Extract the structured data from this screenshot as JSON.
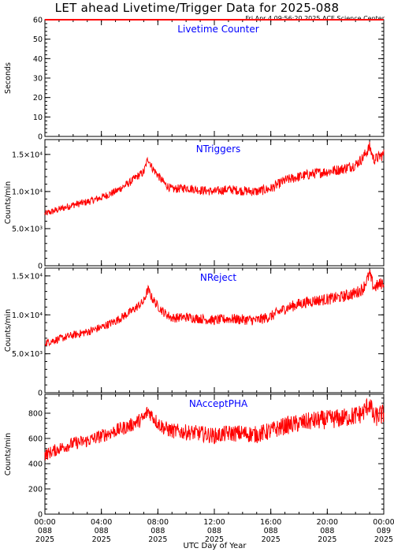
{
  "header": {
    "title": "LET ahead Livetime/Trigger Data for 2025-088",
    "timestamp": "Fri Apr  4 09:56:20 2025 ACE Science Center"
  },
  "colors": {
    "data": "#ff0000",
    "axis": "#000000",
    "panel_title": "#0000ff"
  },
  "chart_data": [
    {
      "type": "line",
      "title": "Livetime Counter",
      "xlabel": "",
      "ylabel": "Seconds",
      "xlim": [
        0,
        24
      ],
      "ylim": [
        0,
        60
      ],
      "yticks": [
        0,
        10,
        20,
        30,
        40,
        50,
        60
      ],
      "yticklabels": [
        "0",
        "10",
        "20",
        "30",
        "40",
        "50",
        "60"
      ],
      "series": [
        {
          "x": [
            0,
            24
          ],
          "y": [
            60,
            60
          ]
        }
      ]
    },
    {
      "type": "line",
      "title": "NTriggers",
      "xlabel": "",
      "ylabel": "Counts/min",
      "xlim": [
        0,
        24
      ],
      "ylim": [
        0,
        17000
      ],
      "yticks": [
        0,
        5000,
        10000,
        15000
      ],
      "yticklabels": [
        "0",
        "5.0×10³",
        "1.0×10⁴",
        "1.5×10⁴"
      ],
      "series": [
        {
          "x": [
            0,
            1,
            2,
            3,
            4,
            5,
            6,
            6.5,
            7,
            7.3,
            7.6,
            8,
            8.5,
            9,
            10,
            11,
            12,
            13,
            14,
            15,
            16,
            17,
            18,
            19,
            20,
            21,
            22,
            22.5,
            23,
            23.3,
            23.6,
            24
          ],
          "y": [
            7000,
            7600,
            8200,
            8600,
            9200,
            10000,
            11200,
            12000,
            12600,
            14500,
            13200,
            12200,
            11000,
            10300,
            10500,
            10200,
            10000,
            10300,
            10100,
            10000,
            10400,
            11500,
            12000,
            12400,
            12700,
            13000,
            13600,
            14500,
            16000,
            14300,
            14600,
            15000
          ]
        }
      ]
    },
    {
      "type": "line",
      "title": "NReject",
      "xlabel": "",
      "ylabel": "Counts/min",
      "xlim": [
        0,
        24
      ],
      "ylim": [
        0,
        16000
      ],
      "yticks": [
        0,
        5000,
        10000,
        15000
      ],
      "yticklabels": [
        "0",
        "5.0×10³",
        "1.0×10⁴",
        "1.5×10⁴"
      ],
      "series": [
        {
          "x": [
            0,
            1,
            2,
            3,
            4,
            5,
            6,
            6.5,
            7,
            7.3,
            7.6,
            8,
            8.5,
            9,
            10,
            11,
            12,
            13,
            14,
            15,
            16,
            17,
            18,
            19,
            20,
            21,
            22,
            22.5,
            23,
            23.3,
            23.6,
            24
          ],
          "y": [
            6400,
            6900,
            7400,
            7800,
            8400,
            9200,
            10300,
            11000,
            11700,
            13300,
            12100,
            11100,
            10200,
            9600,
            9700,
            9500,
            9300,
            9500,
            9400,
            9300,
            9800,
            10800,
            11400,
            11800,
            12000,
            12300,
            12800,
            13300,
            15200,
            13500,
            13800,
            14200
          ]
        }
      ]
    },
    {
      "type": "line",
      "title": "NAcceptPHA",
      "xlabel": "UTC Day of Year",
      "ylabel": "Counts/min",
      "xlim": [
        0,
        24
      ],
      "ylim": [
        0,
        950
      ],
      "yticks": [
        0,
        200,
        400,
        600,
        800
      ],
      "yticklabels": [
        "0",
        "200",
        "400",
        "600",
        "800"
      ],
      "xticks": [
        0,
        4,
        8,
        12,
        16,
        20,
        24
      ],
      "xticklabels": [
        [
          "00:00",
          "088",
          "2025"
        ],
        [
          "04:00",
          "088",
          "2025"
        ],
        [
          "08:00",
          "088",
          "2025"
        ],
        [
          "12:00",
          "088",
          "2025"
        ],
        [
          "16:00",
          "088",
          "2025"
        ],
        [
          "20:00",
          "088",
          "2025"
        ],
        [
          "00:00",
          "089",
          "2025"
        ]
      ],
      "series": [
        {
          "x": [
            0,
            1,
            2,
            3,
            4,
            5,
            6,
            6.5,
            7,
            7.3,
            7.6,
            8,
            8.5,
            9,
            10,
            11,
            12,
            13,
            14,
            15,
            16,
            17,
            18,
            19,
            20,
            21,
            22,
            22.5,
            23,
            23.3,
            23.6,
            24
          ],
          "y": [
            470,
            520,
            560,
            580,
            620,
            660,
            700,
            730,
            760,
            820,
            780,
            720,
            680,
            660,
            650,
            640,
            620,
            640,
            640,
            630,
            660,
            700,
            720,
            740,
            750,
            760,
            780,
            800,
            880,
            760,
            780,
            790
          ]
        }
      ]
    }
  ]
}
